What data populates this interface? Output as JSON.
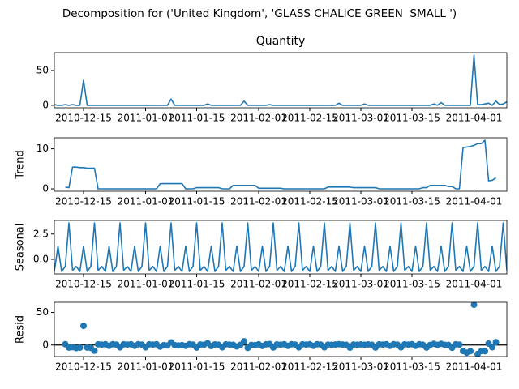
{
  "title": "Decomposition for ('United Kingdom', 'GLASS CHALICE GREEN  SMALL ')",
  "chart_data": [
    {
      "type": "line",
      "title": "Quantity",
      "color": "#1f77b4",
      "x": [
        "2010-12-07",
        "2010-12-08",
        "2010-12-09",
        "2010-12-10",
        "2010-12-11",
        "2010-12-12",
        "2010-12-13",
        "2010-12-14",
        "2010-12-15",
        "2010-12-16",
        "2010-12-17",
        "2010-12-18",
        "2010-12-19",
        "2010-12-20",
        "2010-12-21",
        "2010-12-22",
        "2010-12-23",
        "2010-12-24",
        "2010-12-25",
        "2010-12-26",
        "2010-12-27",
        "2010-12-28",
        "2010-12-29",
        "2010-12-30",
        "2010-12-31",
        "2011-01-01",
        "2011-01-02",
        "2011-01-03",
        "2011-01-04",
        "2011-01-05",
        "2011-01-06",
        "2011-01-07",
        "2011-01-08",
        "2011-01-09",
        "2011-01-10",
        "2011-01-11",
        "2011-01-12",
        "2011-01-13",
        "2011-01-14",
        "2011-01-15",
        "2011-01-16",
        "2011-01-17",
        "2011-01-18",
        "2011-01-19",
        "2011-01-20",
        "2011-01-21",
        "2011-01-22",
        "2011-01-23",
        "2011-01-24",
        "2011-01-25",
        "2011-01-26",
        "2011-01-27",
        "2011-01-28",
        "2011-01-29",
        "2011-01-30",
        "2011-01-31",
        "2011-02-01",
        "2011-02-02",
        "2011-02-03",
        "2011-02-04",
        "2011-02-05",
        "2011-02-06",
        "2011-02-07",
        "2011-02-08",
        "2011-02-09",
        "2011-02-10",
        "2011-02-11",
        "2011-02-12",
        "2011-02-13",
        "2011-02-14",
        "2011-02-15",
        "2011-02-16",
        "2011-02-17",
        "2011-02-18",
        "2011-02-19",
        "2011-02-20",
        "2011-02-21",
        "2011-02-22",
        "2011-02-23",
        "2011-02-24",
        "2011-02-25",
        "2011-02-26",
        "2011-02-27",
        "2011-02-28",
        "2011-03-01",
        "2011-03-02",
        "2011-03-03",
        "2011-03-04",
        "2011-03-05",
        "2011-03-06",
        "2011-03-07",
        "2011-03-08",
        "2011-03-09",
        "2011-03-10",
        "2011-03-11",
        "2011-03-12",
        "2011-03-13",
        "2011-03-14",
        "2011-03-15",
        "2011-03-16",
        "2011-03-17",
        "2011-03-18",
        "2011-03-19",
        "2011-03-20",
        "2011-03-21",
        "2011-03-22",
        "2011-03-23",
        "2011-03-24",
        "2011-03-25",
        "2011-03-26",
        "2011-03-27",
        "2011-03-28",
        "2011-03-29",
        "2011-03-30",
        "2011-03-31",
        "2011-04-01",
        "2011-04-02",
        "2011-04-03",
        "2011-04-04",
        "2011-04-05",
        "2011-04-06",
        "2011-04-07",
        "2011-04-08",
        "2011-04-09",
        "2011-04-10"
      ],
      "values": [
        1,
        0,
        0,
        1,
        0,
        1,
        0,
        0,
        36,
        0,
        0,
        0,
        0,
        0,
        0,
        0,
        0,
        0,
        0,
        0,
        0,
        0,
        0,
        0,
        0,
        0,
        0,
        0,
        0,
        0,
        0,
        0,
        9,
        0,
        0,
        0,
        0,
        0,
        0,
        0,
        0,
        0,
        2,
        0,
        0,
        0,
        0,
        0,
        0,
        0,
        0,
        0,
        6,
        0,
        0,
        0,
        0,
        0,
        0,
        1,
        0,
        0,
        0,
        0,
        0,
        0,
        0,
        0,
        0,
        0,
        0,
        0,
        0,
        0,
        0,
        0,
        0,
        0,
        3,
        0,
        0,
        0,
        0,
        0,
        0,
        2,
        0,
        0,
        0,
        0,
        0,
        0,
        0,
        0,
        0,
        0,
        0,
        0,
        0,
        0,
        0,
        0,
        0,
        0,
        2,
        0,
        4,
        0,
        0,
        0,
        0,
        0,
        0,
        0,
        0,
        72,
        1,
        1,
        2,
        3,
        0,
        6,
        1,
        2,
        5
      ],
      "xlim": [
        "2010-12-07",
        "2011-04-10"
      ],
      "xticks": [
        "2010-12-15",
        "2011-01-01",
        "2011-01-15",
        "2011-02-01",
        "2011-02-15",
        "2011-03-01",
        "2011-03-15",
        "2011-04-01"
      ],
      "ylim": [
        -3.6,
        75.6
      ],
      "yticks": [
        0,
        50
      ]
    },
    {
      "type": "line",
      "ylabel": "Trend",
      "color": "#1f77b4",
      "x": [
        "2010-12-07",
        "2010-12-08",
        "2010-12-09",
        "2010-12-10",
        "2010-12-11",
        "2010-12-12",
        "2010-12-13",
        "2010-12-14",
        "2010-12-15",
        "2010-12-16",
        "2010-12-17",
        "2010-12-18",
        "2010-12-19",
        "2010-12-20",
        "2010-12-21",
        "2010-12-22",
        "2010-12-23",
        "2010-12-24",
        "2010-12-25",
        "2010-12-26",
        "2010-12-27",
        "2010-12-28",
        "2010-12-29",
        "2010-12-30",
        "2010-12-31",
        "2011-01-01",
        "2011-01-02",
        "2011-01-03",
        "2011-01-04",
        "2011-01-05",
        "2011-01-06",
        "2011-01-07",
        "2011-01-08",
        "2011-01-09",
        "2011-01-10",
        "2011-01-11",
        "2011-01-12",
        "2011-01-13",
        "2011-01-14",
        "2011-01-15",
        "2011-01-16",
        "2011-01-17",
        "2011-01-18",
        "2011-01-19",
        "2011-01-20",
        "2011-01-21",
        "2011-01-22",
        "2011-01-23",
        "2011-01-24",
        "2011-01-25",
        "2011-01-26",
        "2011-01-27",
        "2011-01-28",
        "2011-01-29",
        "2011-01-30",
        "2011-01-31",
        "2011-02-01",
        "2011-02-02",
        "2011-02-03",
        "2011-02-04",
        "2011-02-05",
        "2011-02-06",
        "2011-02-07",
        "2011-02-08",
        "2011-02-09",
        "2011-02-10",
        "2011-02-11",
        "2011-02-12",
        "2011-02-13",
        "2011-02-14",
        "2011-02-15",
        "2011-02-16",
        "2011-02-17",
        "2011-02-18",
        "2011-02-19",
        "2011-02-20",
        "2011-02-21",
        "2011-02-22",
        "2011-02-23",
        "2011-02-24",
        "2011-02-25",
        "2011-02-26",
        "2011-02-27",
        "2011-02-28",
        "2011-03-01",
        "2011-03-02",
        "2011-03-03",
        "2011-03-04",
        "2011-03-05",
        "2011-03-06",
        "2011-03-07",
        "2011-03-08",
        "2011-03-09",
        "2011-03-10",
        "2011-03-11",
        "2011-03-12",
        "2011-03-13",
        "2011-03-14",
        "2011-03-15",
        "2011-03-16",
        "2011-03-17",
        "2011-03-18",
        "2011-03-19",
        "2011-03-20",
        "2011-03-21",
        "2011-03-22",
        "2011-03-23",
        "2011-03-24",
        "2011-03-25",
        "2011-03-26",
        "2011-03-27",
        "2011-03-28",
        "2011-03-29",
        "2011-03-30",
        "2011-03-31",
        "2011-04-01",
        "2011-04-02",
        "2011-04-03",
        "2011-04-04",
        "2011-04-05",
        "2011-04-06",
        "2011-04-07",
        "2011-04-08",
        "2011-04-09",
        "2011-04-10"
      ],
      "values": [
        null,
        null,
        null,
        0.43,
        0.29,
        5.43,
        5.43,
        5.29,
        5.29,
        5.14,
        5.14,
        5.14,
        0,
        0,
        0,
        0,
        0,
        0,
        0,
        0,
        0,
        0,
        0,
        0,
        0,
        0,
        0,
        0,
        0,
        1.29,
        1.29,
        1.29,
        1.29,
        1.29,
        1.29,
        1.29,
        0,
        0,
        0,
        0.29,
        0.29,
        0.29,
        0.29,
        0.29,
        0.29,
        0.29,
        0,
        0,
        0,
        0.86,
        0.86,
        0.86,
        0.86,
        0.86,
        0.86,
        0.86,
        0.14,
        0.14,
        0.14,
        0.14,
        0.14,
        0.14,
        0.14,
        0,
        0,
        0,
        0,
        0,
        0,
        0,
        0,
        0,
        0,
        0,
        0,
        0.43,
        0.43,
        0.43,
        0.43,
        0.43,
        0.43,
        0.43,
        0.29,
        0.29,
        0.29,
        0.29,
        0.29,
        0.29,
        0.29,
        0,
        0,
        0,
        0,
        0,
        0,
        0,
        0,
        0,
        0,
        0,
        0,
        0.29,
        0.29,
        0.86,
        0.86,
        0.86,
        0.86,
        0.86,
        0.57,
        0.57,
        0,
        0,
        10.29,
        10.43,
        10.57,
        10.86,
        11.29,
        11.29,
        12.14,
        2,
        2.14,
        2.71,
        null,
        null,
        null
      ],
      "xlim": [
        "2010-12-07",
        "2011-04-10"
      ],
      "xticks": [
        "2010-12-15",
        "2011-01-01",
        "2011-01-15",
        "2011-02-01",
        "2011-02-15",
        "2011-03-01",
        "2011-03-15",
        "2011-04-01"
      ],
      "ylim": [
        -0.61,
        12.75
      ],
      "yticks": [
        0,
        10
      ]
    },
    {
      "type": "line",
      "ylabel": "Seasonal",
      "color": "#1f77b4",
      "x": [
        "2010-12-07",
        "2010-12-08",
        "2010-12-09",
        "2010-12-10",
        "2010-12-11",
        "2010-12-12",
        "2010-12-13",
        "2010-12-14",
        "2010-12-15",
        "2010-12-16",
        "2010-12-17",
        "2010-12-18",
        "2010-12-19",
        "2010-12-20",
        "2010-12-21",
        "2010-12-22",
        "2010-12-23",
        "2010-12-24",
        "2010-12-25",
        "2010-12-26",
        "2010-12-27",
        "2010-12-28",
        "2010-12-29",
        "2010-12-30",
        "2010-12-31",
        "2011-01-01",
        "2011-01-02",
        "2011-01-03",
        "2011-01-04",
        "2011-01-05",
        "2011-01-06",
        "2011-01-07",
        "2011-01-08",
        "2011-01-09",
        "2011-01-10",
        "2011-01-11",
        "2011-01-12",
        "2011-01-13",
        "2011-01-14",
        "2011-01-15",
        "2011-01-16",
        "2011-01-17",
        "2011-01-18",
        "2011-01-19",
        "2011-01-20",
        "2011-01-21",
        "2011-01-22",
        "2011-01-23",
        "2011-01-24",
        "2011-01-25",
        "2011-01-26",
        "2011-01-27",
        "2011-01-28",
        "2011-01-29",
        "2011-01-30",
        "2011-01-31",
        "2011-02-01",
        "2011-02-02",
        "2011-02-03",
        "2011-02-04",
        "2011-02-05",
        "2011-02-06",
        "2011-02-07",
        "2011-02-08",
        "2011-02-09",
        "2011-02-10",
        "2011-02-11",
        "2011-02-12",
        "2011-02-13",
        "2011-02-14",
        "2011-02-15",
        "2011-02-16",
        "2011-02-17",
        "2011-02-18",
        "2011-02-19",
        "2011-02-20",
        "2011-02-21",
        "2011-02-22",
        "2011-02-23",
        "2011-02-24",
        "2011-02-25",
        "2011-02-26",
        "2011-02-27",
        "2011-02-28",
        "2011-03-01",
        "2011-03-02",
        "2011-03-03",
        "2011-03-04",
        "2011-03-05",
        "2011-03-06",
        "2011-03-07",
        "2011-03-08",
        "2011-03-09",
        "2011-03-10",
        "2011-03-11",
        "2011-03-12",
        "2011-03-13",
        "2011-03-14",
        "2011-03-15",
        "2011-03-16",
        "2011-03-17",
        "2011-03-18",
        "2011-03-19",
        "2011-03-20",
        "2011-03-21",
        "2011-03-22",
        "2011-03-23",
        "2011-03-24",
        "2011-03-25",
        "2011-03-26",
        "2011-03-27",
        "2011-03-28",
        "2011-03-29",
        "2011-03-30",
        "2011-03-31",
        "2011-04-01",
        "2011-04-02",
        "2011-04-03",
        "2011-04-04",
        "2011-04-05",
        "2011-04-06",
        "2011-04-07",
        "2011-04-08",
        "2011-04-09",
        "2011-04-10"
      ],
      "values": [
        -1.2,
        1.3,
        -1.2,
        -0.7,
        3.6,
        -1.1,
        -0.7,
        -1.2,
        1.3,
        -1.2,
        -0.7,
        3.6,
        -1.1,
        -0.7,
        -1.2,
        1.3,
        -1.2,
        -0.7,
        3.6,
        -1.1,
        -0.7,
        -1.2,
        1.3,
        -1.2,
        -0.7,
        3.6,
        -1.1,
        -0.7,
        -1.2,
        1.3,
        -1.2,
        -0.7,
        3.6,
        -1.1,
        -0.7,
        -1.2,
        1.3,
        -1.2,
        -0.7,
        3.6,
        -1.1,
        -0.7,
        -1.2,
        1.3,
        -1.2,
        -0.7,
        3.6,
        -1.1,
        -0.7,
        -1.2,
        1.3,
        -1.2,
        -0.7,
        3.6,
        -1.1,
        -0.7,
        -1.2,
        1.3,
        -1.2,
        -0.7,
        3.6,
        -1.1,
        -0.7,
        -1.2,
        1.3,
        -1.2,
        -0.7,
        3.6,
        -1.1,
        -0.7,
        -1.2,
        1.3,
        -1.2,
        -0.7,
        3.6,
        -1.1,
        -0.7,
        -1.2,
        1.3,
        -1.2,
        -0.7,
        3.6,
        -1.1,
        -0.7,
        -1.2,
        1.3,
        -1.2,
        -0.7,
        3.6,
        -1.1,
        -0.7,
        -1.2,
        1.3,
        -1.2,
        -0.7,
        3.6,
        -1.1,
        -0.7,
        -1.2,
        1.3,
        -1.2,
        -0.7,
        3.6,
        -1.1,
        -0.7,
        -1.2,
        1.3,
        -1.2,
        -0.7,
        3.6,
        -1.1,
        -0.7,
        -1.2,
        1.3,
        -1.2,
        -0.7,
        3.6,
        -1.1,
        -0.7,
        -1.2,
        1.3,
        -1.2,
        -0.7,
        3.6,
        -1.1
      ],
      "xlim": [
        "2010-12-07",
        "2011-04-10"
      ],
      "xticks": [
        "2010-12-15",
        "2011-01-01",
        "2011-01-15",
        "2011-02-01",
        "2011-02-15",
        "2011-03-01",
        "2011-03-15",
        "2011-04-01"
      ],
      "ylim": [
        -1.44,
        3.84
      ],
      "yticks": [
        {
          "value": 0,
          "label": "0.0"
        },
        {
          "value": 2.5,
          "label": "2.5"
        }
      ]
    },
    {
      "type": "scatter",
      "ylabel": "Resid",
      "color": "#1f77b4",
      "baseline": 0,
      "x": [
        "2010-12-07",
        "2010-12-08",
        "2010-12-09",
        "2010-12-10",
        "2010-12-11",
        "2010-12-12",
        "2010-12-13",
        "2010-12-14",
        "2010-12-15",
        "2010-12-16",
        "2010-12-17",
        "2010-12-18",
        "2010-12-19",
        "2010-12-20",
        "2010-12-21",
        "2010-12-22",
        "2010-12-23",
        "2010-12-24",
        "2010-12-25",
        "2010-12-26",
        "2010-12-27",
        "2010-12-28",
        "2010-12-29",
        "2010-12-30",
        "2010-12-31",
        "2011-01-01",
        "2011-01-02",
        "2011-01-03",
        "2011-01-04",
        "2011-01-05",
        "2011-01-06",
        "2011-01-07",
        "2011-01-08",
        "2011-01-09",
        "2011-01-10",
        "2011-01-11",
        "2011-01-12",
        "2011-01-13",
        "2011-01-14",
        "2011-01-15",
        "2011-01-16",
        "2011-01-17",
        "2011-01-18",
        "2011-01-19",
        "2011-01-20",
        "2011-01-21",
        "2011-01-22",
        "2011-01-23",
        "2011-01-24",
        "2011-01-25",
        "2011-01-26",
        "2011-01-27",
        "2011-01-28",
        "2011-01-29",
        "2011-01-30",
        "2011-01-31",
        "2011-02-01",
        "2011-02-02",
        "2011-02-03",
        "2011-02-04",
        "2011-02-05",
        "2011-02-06",
        "2011-02-07",
        "2011-02-08",
        "2011-02-09",
        "2011-02-10",
        "2011-02-11",
        "2011-02-12",
        "2011-02-13",
        "2011-02-14",
        "2011-02-15",
        "2011-02-16",
        "2011-02-17",
        "2011-02-18",
        "2011-02-19",
        "2011-02-20",
        "2011-02-21",
        "2011-02-22",
        "2011-02-23",
        "2011-02-24",
        "2011-02-25",
        "2011-02-26",
        "2011-02-27",
        "2011-02-28",
        "2011-03-01",
        "2011-03-02",
        "2011-03-03",
        "2011-03-04",
        "2011-03-05",
        "2011-03-06",
        "2011-03-07",
        "2011-03-08",
        "2011-03-09",
        "2011-03-10",
        "2011-03-11",
        "2011-03-12",
        "2011-03-13",
        "2011-03-14",
        "2011-03-15",
        "2011-03-16",
        "2011-03-17",
        "2011-03-18",
        "2011-03-19",
        "2011-03-20",
        "2011-03-21",
        "2011-03-22",
        "2011-03-23",
        "2011-03-24",
        "2011-03-25",
        "2011-03-26",
        "2011-03-27",
        "2011-03-28",
        "2011-03-29",
        "2011-03-30",
        "2011-03-31",
        "2011-04-01",
        "2011-04-02",
        "2011-04-03",
        "2011-04-04",
        "2011-04-05",
        "2011-04-06",
        "2011-04-07",
        "2011-04-08",
        "2011-04-09",
        "2011-04-10"
      ],
      "values": [
        null,
        null,
        null,
        1.27,
        -3.89,
        -3.33,
        -4.73,
        -4.09,
        29.41,
        -3.94,
        -4.44,
        -8.74,
        1.1,
        0.7,
        1.2,
        -1.3,
        1.2,
        0.7,
        -3.6,
        1.1,
        0.7,
        1.2,
        -1.3,
        1.2,
        0.7,
        -3.6,
        1.1,
        0.7,
        1.2,
        -2.59,
        -0.09,
        -0.59,
        4.11,
        -0.19,
        -0.59,
        -0.09,
        -1.3,
        1.2,
        0.7,
        -3.89,
        0.81,
        0.41,
        2.91,
        -1.59,
        0.91,
        0.41,
        -3.6,
        1.1,
        0.7,
        0.34,
        -2.16,
        0.34,
        5.84,
        -4.46,
        0.24,
        -0.16,
        1.06,
        -1.44,
        1.06,
        1.56,
        -3.74,
        0.96,
        0.56,
        1.2,
        -1.3,
        1.2,
        0.7,
        -3.6,
        1.1,
        0.7,
        1.2,
        -1.3,
        1.2,
        0.7,
        -3.6,
        0.67,
        0.27,
        0.77,
        1.27,
        0.77,
        0.27,
        -4.03,
        0.81,
        0.41,
        0.91,
        0.41,
        0.91,
        0.41,
        -3.89,
        1.1,
        0.7,
        1.2,
        -1.3,
        1.2,
        0.7,
        -3.6,
        1.1,
        0.7,
        1.2,
        -1.3,
        1.2,
        0.41,
        -3.89,
        0.24,
        1.84,
        0.34,
        1.84,
        0.34,
        0.13,
        -4.17,
        1.1,
        0.7,
        -9.09,
        -11.73,
        -9.37,
        61.84,
        -13.89,
        -9.19,
        -9.44,
        2.2,
        -3.44,
        4.49,
        null,
        null,
        null
      ],
      "xlim": [
        "2010-12-07",
        "2011-04-10"
      ],
      "xticks": [
        "2010-12-15",
        "2011-01-01",
        "2011-01-15",
        "2011-02-01",
        "2011-02-15",
        "2011-03-01",
        "2011-03-15",
        "2011-04-01"
      ],
      "ylim": [
        -17.7,
        65.6
      ],
      "yticks": [
        0,
        50
      ]
    }
  ]
}
